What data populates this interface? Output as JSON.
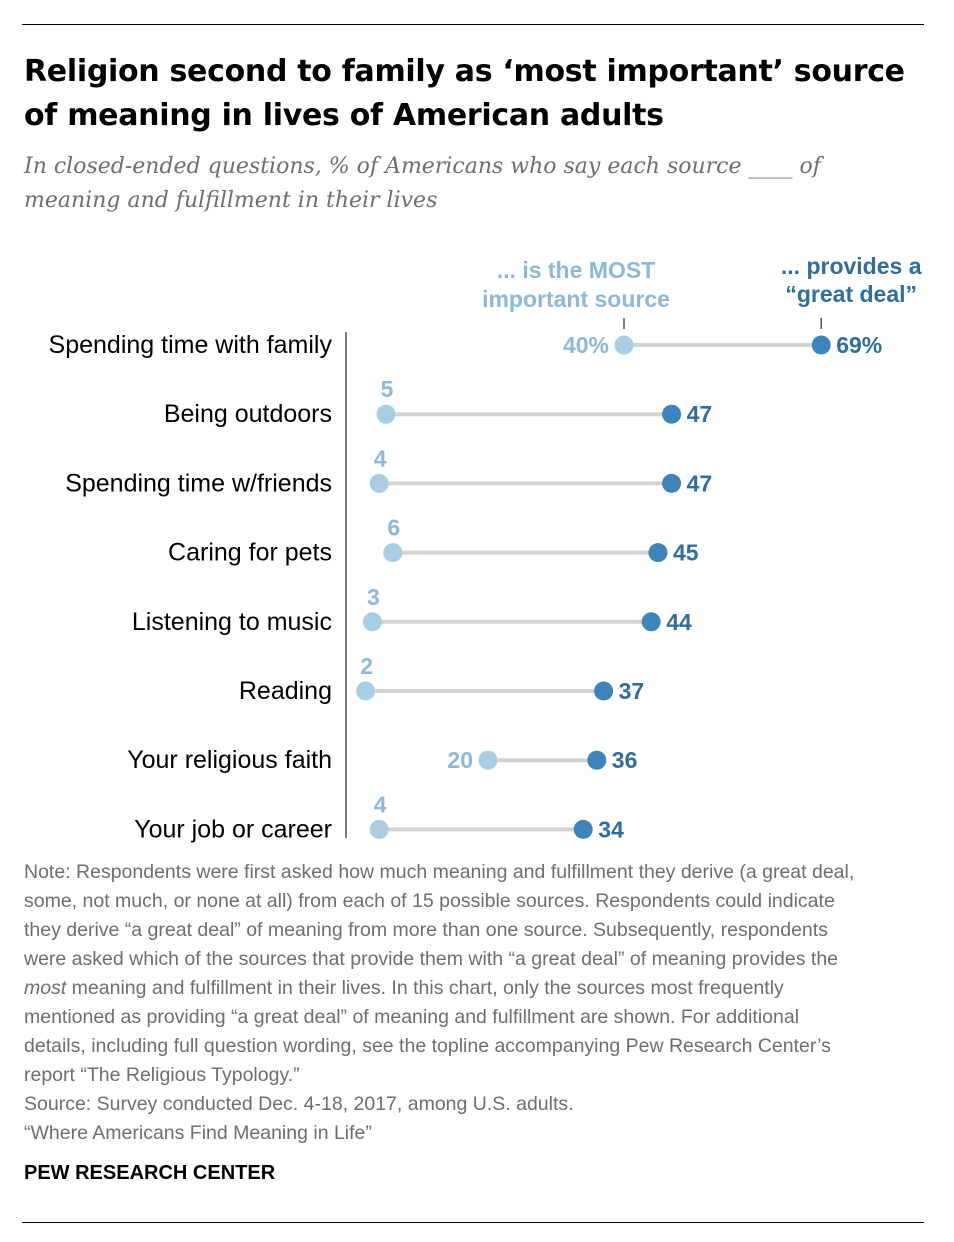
{
  "header": {
    "title": "Religion second to family as ‘most important’ source of meaning in lives of American adults",
    "subtitle": "In closed-ended questions, % of Americans who say each source ____ of meaning and fulfillment in their lives"
  },
  "chart_data": {
    "type": "dot",
    "legend": {
      "most_important": [
        "... is the MOST",
        "important source"
      ],
      "great_deal": [
        "... provides a",
        "“great deal”"
      ]
    },
    "categories": [
      "Spending time with family",
      "Being outdoors",
      "Spending time w/friends",
      "Caring for pets",
      "Listening to music",
      "Reading",
      "Your religious faith",
      "Your job or career"
    ],
    "series": [
      {
        "name": "... is the MOST important source",
        "values": [
          40,
          5,
          4,
          6,
          3,
          2,
          20,
          4
        ],
        "color": "#a9cde3"
      },
      {
        "name": "... provides a “great deal”",
        "values": [
          69,
          47,
          47,
          45,
          44,
          37,
          36,
          34
        ],
        "color": "#3f84b8"
      }
    ],
    "value_labels": {
      "most_important": [
        "40%",
        "5",
        "4",
        "6",
        "3",
        "2",
        "20",
        "4"
      ],
      "great_deal": [
        "69%",
        "47",
        "47",
        "45",
        "44",
        "37",
        "36",
        "34"
      ]
    },
    "connector_color": "#d3d3d3",
    "label_color_light": "#8db9d9",
    "label_color_dark": "#2f6e9c",
    "xlim": [
      0,
      75
    ]
  },
  "footer": {
    "note_lines": [
      "Note: Respondents were first asked how much meaning and fulfillment they derive (a great deal,",
      "some, not much, or none at all) from each of 15 possible sources. Respondents could indicate",
      "they derive “a great deal” of meaning from more than one source. Subsequently, respondents",
      "were asked which of the sources that provide them with “a great deal” of meaning provides the"
    ],
    "note_emph": "most",
    "note_lines_after": [
      " meaning and fulfillment in their lives. In this chart, only the sources most frequently",
      "mentioned as providing “a great deal” of meaning and fulfillment are shown. For additional",
      "details, including full question wording, see the topline accompanying Pew Research Center’s",
      "report “The Religious Typology.”"
    ],
    "source": "Source: Survey conducted Dec. 4-18, 2017, among U.S. adults.",
    "report": "“Where Americans Find Meaning in Life”",
    "brand": "PEW RESEARCH CENTER"
  }
}
